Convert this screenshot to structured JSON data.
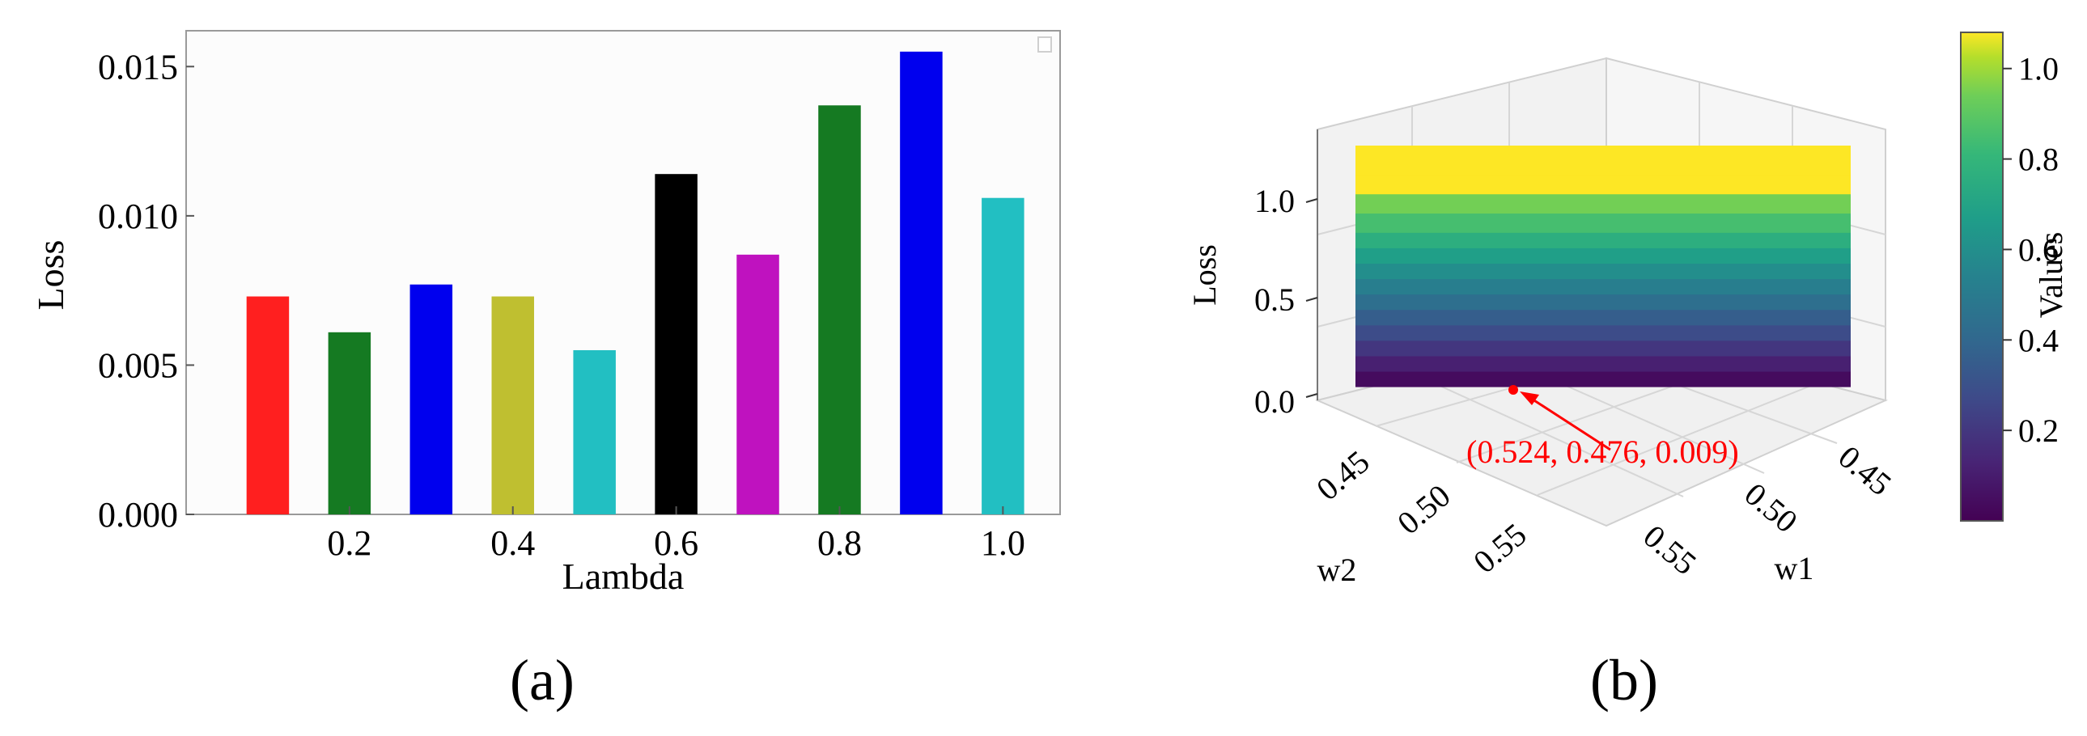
{
  "panels": {
    "a_label": "(a)",
    "b_label": "(b)"
  },
  "chart_data": [
    {
      "type": "bar",
      "panel": "a",
      "title": "",
      "xlabel": "Lambda",
      "ylabel": "Loss",
      "x": [
        0.1,
        0.2,
        0.3,
        0.4,
        0.5,
        0.6,
        0.7,
        0.8,
        0.9,
        1.0
      ],
      "values": [
        0.0073,
        0.0061,
        0.0077,
        0.0073,
        0.0055,
        0.0114,
        0.0087,
        0.0137,
        0.0155,
        0.0106
      ],
      "colors": [
        "#ff1f1f",
        "#157a22",
        "#0000ee",
        "#bfbf30",
        "#22bfc2",
        "#000000",
        "#bf12bf",
        "#157a22",
        "#0000ee",
        "#22bfc2"
      ],
      "xlim": [
        0.0,
        1.07
      ],
      "ylim": [
        0.0,
        0.0162
      ],
      "xticks": [
        0.2,
        0.4,
        0.6,
        0.8,
        1.0
      ],
      "xtick_labels": [
        "0.2",
        "0.4",
        "0.6",
        "0.8",
        "1.0"
      ],
      "yticks": [
        0.0,
        0.005,
        0.01,
        0.015
      ],
      "ytick_labels": [
        "0.000",
        "0.005",
        "0.010",
        "0.015"
      ],
      "grid": false,
      "legend": "top-right (empty)"
    },
    {
      "type": "heatmap",
      "subtype": "3d-surface",
      "panel": "b",
      "title": "",
      "xlabel": "w1",
      "ylabel": "w2",
      "zlabel": "Loss",
      "colormap": "viridis",
      "colorbar_label": "Values",
      "colorbar_ticks": [
        "0.2",
        "0.4",
        "0.6",
        "0.8",
        "1.0"
      ],
      "colorbar_range": [
        0.0,
        1.08
      ],
      "w1_ticks": [
        "0.45",
        "0.50",
        "0.55"
      ],
      "w2_ticks": [
        "0.45",
        "0.50",
        "0.55"
      ],
      "z_ticks": [
        "0.0",
        "0.5",
        "1.0"
      ],
      "zlim": [
        0.0,
        1.25
      ],
      "surface_levels": [
        0.0,
        0.08,
        0.16,
        0.24,
        0.32,
        0.4,
        0.48,
        0.56,
        0.64,
        0.72,
        0.8,
        0.9,
        1.0,
        1.1,
        1.25
      ],
      "annotation": {
        "text": "(0.524, 0.476, 0.009)",
        "color": "#ff0000"
      },
      "grid": true
    }
  ]
}
